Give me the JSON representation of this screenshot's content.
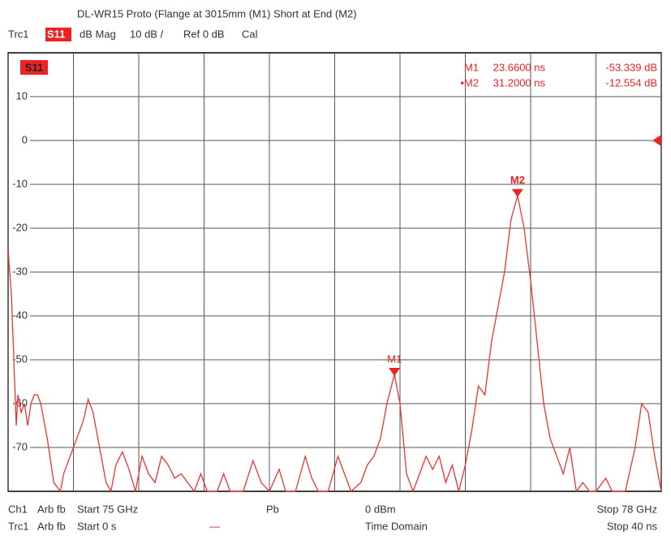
{
  "chart_data": {
    "type": "line",
    "title": "DL-WR15 Proto (Flange at 3015mm (M1) Short at End (M2)",
    "header": [
      "Trc1",
      "S11",
      "dB Mag",
      "10 dB /",
      "Ref 0 dB",
      "Cal"
    ],
    "trace_label": "S11",
    "x": [
      0,
      0.2,
      0.4,
      0.5,
      0.6,
      0.8,
      1.0,
      1.2,
      1.4,
      1.6,
      1.8,
      2.0,
      2.4,
      2.8,
      3.2,
      3.4,
      3.8,
      4.2,
      4.6,
      4.9,
      5.2,
      5.6,
      6.0,
      6.3,
      6.6,
      7.0,
      7.4,
      7.8,
      8.2,
      8.6,
      9.0,
      9.4,
      9.8,
      10.2,
      10.6,
      11.0,
      11.4,
      11.8,
      12.2,
      12.8,
      13.2,
      13.6,
      14.4,
      15.0,
      15.5,
      16.0,
      16.6,
      17.0,
      17.6,
      18.2,
      18.6,
      19.0,
      19.6,
      20.2,
      20.6,
      21.0,
      21.6,
      22.0,
      22.4,
      22.8,
      23.2,
      23.66,
      24.0,
      24.4,
      24.8,
      25.2,
      25.6,
      26.0,
      26.4,
      26.8,
      27.2,
      27.6,
      28.0,
      28.4,
      28.8,
      29.2,
      29.6,
      30.0,
      30.4,
      30.8,
      31.2,
      31.6,
      32.0,
      32.4,
      32.8,
      33.2,
      33.6,
      34.0,
      34.4,
      34.8,
      35.2,
      35.6,
      36.0,
      36.6,
      37.0,
      37.8,
      38.4,
      38.8,
      39.2,
      39.6,
      40
    ],
    "series": [
      {
        "name": "Trc1",
        "color": "#ee3333",
        "values": [
          -25,
          -35,
          -55,
          -65,
          -58,
          -62,
          -60,
          -65,
          -60,
          -58,
          -58,
          -60,
          -68,
          -78,
          -80,
          -76,
          -72,
          -68,
          -64,
          -59,
          -62,
          -70,
          -78,
          -80,
          -74,
          -71,
          -75,
          -80,
          -72,
          -76,
          -78,
          -72,
          -74,
          -77,
          -76,
          -78,
          -80,
          -76,
          -80,
          -80,
          -76,
          -80,
          -80,
          -73,
          -78,
          -80,
          -75,
          -80,
          -80,
          -72,
          -77,
          -80,
          -80,
          -72,
          -76,
          -80,
          -78,
          -74,
          -72,
          -68,
          -60,
          -53.339,
          -60,
          -76,
          -80,
          -76,
          -72,
          -75,
          -72,
          -78,
          -74,
          -80,
          -74,
          -66,
          -56,
          -58,
          -46,
          -38,
          -30,
          -18,
          -12.554,
          -20,
          -32,
          -46,
          -60,
          -68,
          -72,
          -76,
          -70,
          -80,
          -78,
          -80,
          -80,
          -77,
          -80,
          -80,
          -70,
          -60,
          -62,
          -72,
          -80
        ]
      }
    ],
    "xlim": [
      0,
      40
    ],
    "xticks": [
      0,
      4,
      8,
      12,
      16,
      20,
      24,
      28,
      32,
      36,
      40
    ],
    "ylim": [
      -80,
      20
    ],
    "yticks": [
      10,
      0,
      -10,
      -20,
      -30,
      -40,
      -50,
      -60,
      -70
    ],
    "grid": true,
    "markers": [
      {
        "label": "M1",
        "readout_label": "M1",
        "x": 23.66,
        "x_label": "23.6600 ns",
        "y": -53.339,
        "y_label": "-53.339 dB"
      },
      {
        "label": "M2",
        "readout_label": "•M2",
        "x": 31.2,
        "x_label": "31.2000 ns",
        "y": -12.554,
        "y_label": "-12.554 dB"
      }
    ],
    "footer": [
      [
        "Ch1",
        "Arb fb",
        "Start 75 GHz",
        "Pb",
        "0 dBm",
        "Stop 78 GHz"
      ],
      [
        "Trc1",
        "Arb fb",
        "Start 0 s",
        "—",
        "Time Domain",
        "Stop 40 ns"
      ]
    ]
  }
}
